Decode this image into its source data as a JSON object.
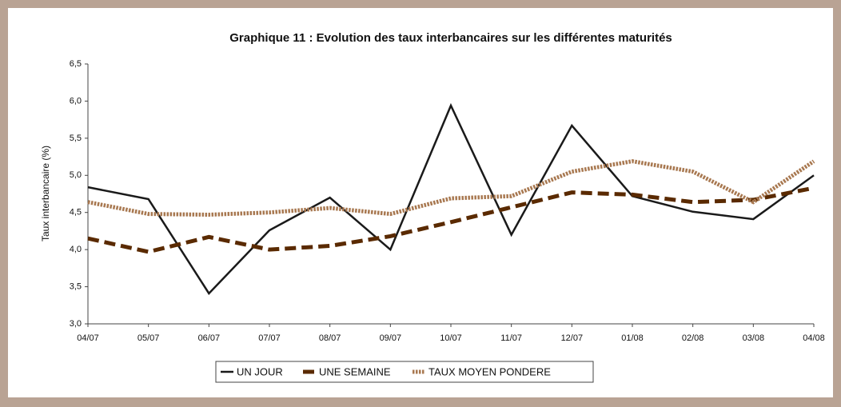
{
  "chart_data": {
    "type": "line",
    "title": "Graphique 11 : Evolution des taux interbancaires sur les différentes maturités",
    "y_label": "Taux interbancaire (%)",
    "categories": [
      "04/07",
      "05/07",
      "06/07",
      "07/07",
      "08/07",
      "09/07",
      "10/07",
      "11/07",
      "12/07",
      "01/08",
      "02/08",
      "03/08",
      "04/08"
    ],
    "series": [
      {
        "name": "UN JOUR",
        "color": "#1a1a1a",
        "style": "solid",
        "values": [
          4.84,
          4.68,
          3.41,
          4.26,
          4.7,
          4.0,
          5.94,
          4.2,
          5.67,
          4.72,
          4.51,
          4.41,
          5.0
        ]
      },
      {
        "name": "UNE SEMAINE",
        "color": "#5a2a00",
        "style": "dashed",
        "values": [
          4.15,
          3.97,
          4.17,
          4.0,
          4.05,
          4.18,
          4.37,
          4.57,
          4.77,
          4.74,
          4.64,
          4.67,
          4.83
        ]
      },
      {
        "name": "TAUX MOYEN PONDERE",
        "color": "#a87850",
        "style": "dotted",
        "values": [
          4.64,
          4.48,
          4.47,
          4.5,
          4.56,
          4.48,
          4.69,
          4.72,
          5.05,
          5.19,
          5.05,
          4.64,
          5.19
        ]
      }
    ],
    "ylim": [
      3.0,
      6.5
    ],
    "yticks": [
      {
        "value": 3.0,
        "label": "3,0"
      },
      {
        "value": 3.5,
        "label": "3,5"
      },
      {
        "value": 4.0,
        "label": "4,0"
      },
      {
        "value": 4.5,
        "label": "4,5"
      },
      {
        "value": 5.0,
        "label": "5,0"
      },
      {
        "value": 5.5,
        "label": "5,5"
      },
      {
        "value": 6.0,
        "label": "6,0"
      },
      {
        "value": 6.5,
        "label": "6,5"
      }
    ],
    "legend": "bottom"
  }
}
